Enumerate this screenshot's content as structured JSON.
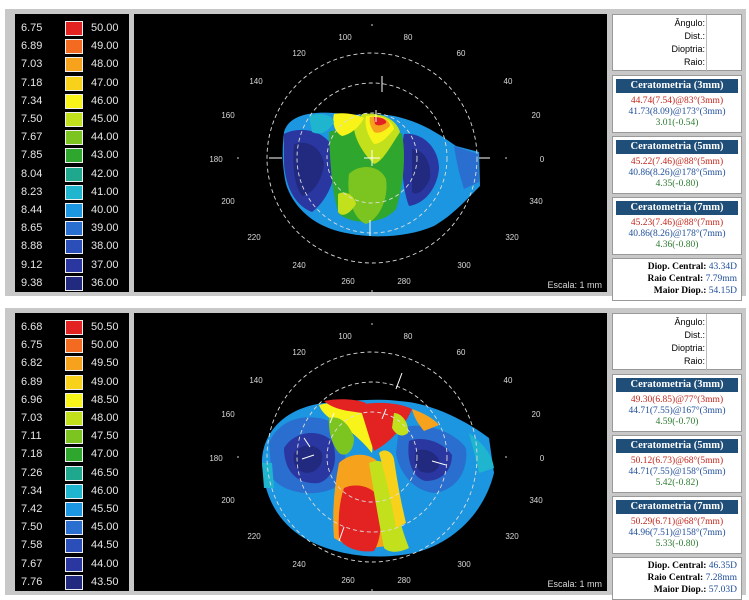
{
  "panels": [
    {
      "scale": [
        {
          "radius": "6.75",
          "diopter": "50.00",
          "color": "#e32222"
        },
        {
          "radius": "6.89",
          "diopter": "49.00",
          "color": "#f26b20"
        },
        {
          "radius": "7.03",
          "diopter": "48.00",
          "color": "#f7a21c"
        },
        {
          "radius": "7.18",
          "diopter": "47.00",
          "color": "#f8d21a"
        },
        {
          "radius": "7.34",
          "diopter": "46.00",
          "color": "#f8f41a"
        },
        {
          "radius": "7.50",
          "diopter": "45.00",
          "color": "#c3e01c"
        },
        {
          "radius": "7.67",
          "diopter": "44.00",
          "color": "#7cc520"
        },
        {
          "radius": "7.85",
          "diopter": "43.00",
          "color": "#2fa62d"
        },
        {
          "radius": "8.04",
          "diopter": "42.00",
          "color": "#1fa88e"
        },
        {
          "radius": "8.23",
          "diopter": "41.00",
          "color": "#1fb5cf"
        },
        {
          "radius": "8.44",
          "diopter": "40.00",
          "color": "#1c96e0"
        },
        {
          "radius": "8.65",
          "diopter": "39.00",
          "color": "#2a6ed0"
        },
        {
          "radius": "8.88",
          "diopter": "38.00",
          "color": "#2b4fb8"
        },
        {
          "radius": "9.12",
          "diopter": "37.00",
          "color": "#2a37a0"
        },
        {
          "radius": "9.38",
          "diopter": "36.00",
          "color": "#222a80"
        }
      ],
      "map": {
        "angles": [
          "100",
          "80",
          "120",
          "60",
          "140",
          "40",
          "160",
          "20",
          "180",
          "0",
          "200",
          "340",
          "220",
          "320",
          "240",
          "300",
          "260",
          "280"
        ],
        "scale_label": "Escala: 1 mm"
      },
      "info_labels": [
        "Ângulo:",
        "Dist.:",
        "Dioptria:",
        "Raio:"
      ],
      "keratometry": [
        {
          "title": "Ceratometria (3mm)",
          "steep": "44.74(7.54)@83°(3mm)",
          "flat": "41.73(8.09)@173°(3mm)",
          "cyl": "3.01(-0.54)"
        },
        {
          "title": "Ceratometria (5mm)",
          "steep": "45.22(7.46)@88°(5mm)",
          "flat": "40.86(8.26)@178°(5mm)",
          "cyl": "4.35(-0.80)"
        },
        {
          "title": "Ceratometria (7mm)",
          "steep": "45.23(7.46)@88°(7mm)",
          "flat": "40.86(8.26)@178°(7mm)",
          "cyl": "4.36(-0.80)"
        }
      ],
      "summary": [
        {
          "label": "Diop. Central:",
          "value": "43.34D"
        },
        {
          "label": "Raio Central:",
          "value": "7.79mm"
        },
        {
          "label": "Maior Diop.:",
          "value": "54.15D"
        }
      ]
    },
    {
      "scale": [
        {
          "radius": "6.68",
          "diopter": "50.50",
          "color": "#e32222"
        },
        {
          "radius": "6.75",
          "diopter": "50.00",
          "color": "#f26b20"
        },
        {
          "radius": "6.82",
          "diopter": "49.50",
          "color": "#f7a21c"
        },
        {
          "radius": "6.89",
          "diopter": "49.00",
          "color": "#f8d21a"
        },
        {
          "radius": "6.96",
          "diopter": "48.50",
          "color": "#f8f41a"
        },
        {
          "radius": "7.03",
          "diopter": "48.00",
          "color": "#c3e01c"
        },
        {
          "radius": "7.11",
          "diopter": "47.50",
          "color": "#7cc520"
        },
        {
          "radius": "7.18",
          "diopter": "47.00",
          "color": "#2fa62d"
        },
        {
          "radius": "7.26",
          "diopter": "46.50",
          "color": "#1fa88e"
        },
        {
          "radius": "7.34",
          "diopter": "46.00",
          "color": "#1fb5cf"
        },
        {
          "radius": "7.42",
          "diopter": "45.50",
          "color": "#1c96e0"
        },
        {
          "radius": "7.50",
          "diopter": "45.00",
          "color": "#2a6ed0"
        },
        {
          "radius": "7.58",
          "diopter": "44.50",
          "color": "#2b4fb8"
        },
        {
          "radius": "7.67",
          "diopter": "44.00",
          "color": "#2a37a0"
        },
        {
          "radius": "7.76",
          "diopter": "43.50",
          "color": "#222a80"
        }
      ],
      "map": {
        "angles": [
          "100",
          "80",
          "120",
          "60",
          "140",
          "40",
          "160",
          "20",
          "180",
          "0",
          "200",
          "340",
          "220",
          "320",
          "240",
          "300",
          "260",
          "280"
        ],
        "scale_label": "Escala: 1 mm"
      },
      "info_labels": [
        "Ângulo:",
        "Dist.:",
        "Dioptria:",
        "Raio:"
      ],
      "keratometry": [
        {
          "title": "Ceratometria (3mm)",
          "steep": "49.30(6.85)@77°(3mm)",
          "flat": "44.71(7.55)@167°(3mm)",
          "cyl": "4.59(-0.70)"
        },
        {
          "title": "Ceratometria (5mm)",
          "steep": "50.12(6.73)@68°(5mm)",
          "flat": "44.71(7.55)@158°(5mm)",
          "cyl": "5.42(-0.82)"
        },
        {
          "title": "Ceratometria (7mm)",
          "steep": "50.29(6.71)@68°(7mm)",
          "flat": "44.96(7.51)@158°(7mm)",
          "cyl": "5.33(-0.80)"
        }
      ],
      "summary": [
        {
          "label": "Diop. Central:",
          "value": "46.35D"
        },
        {
          "label": "Raio Central:",
          "value": "7.28mm"
        },
        {
          "label": "Maior Diop.:",
          "value": "57.03D"
        }
      ]
    }
  ]
}
